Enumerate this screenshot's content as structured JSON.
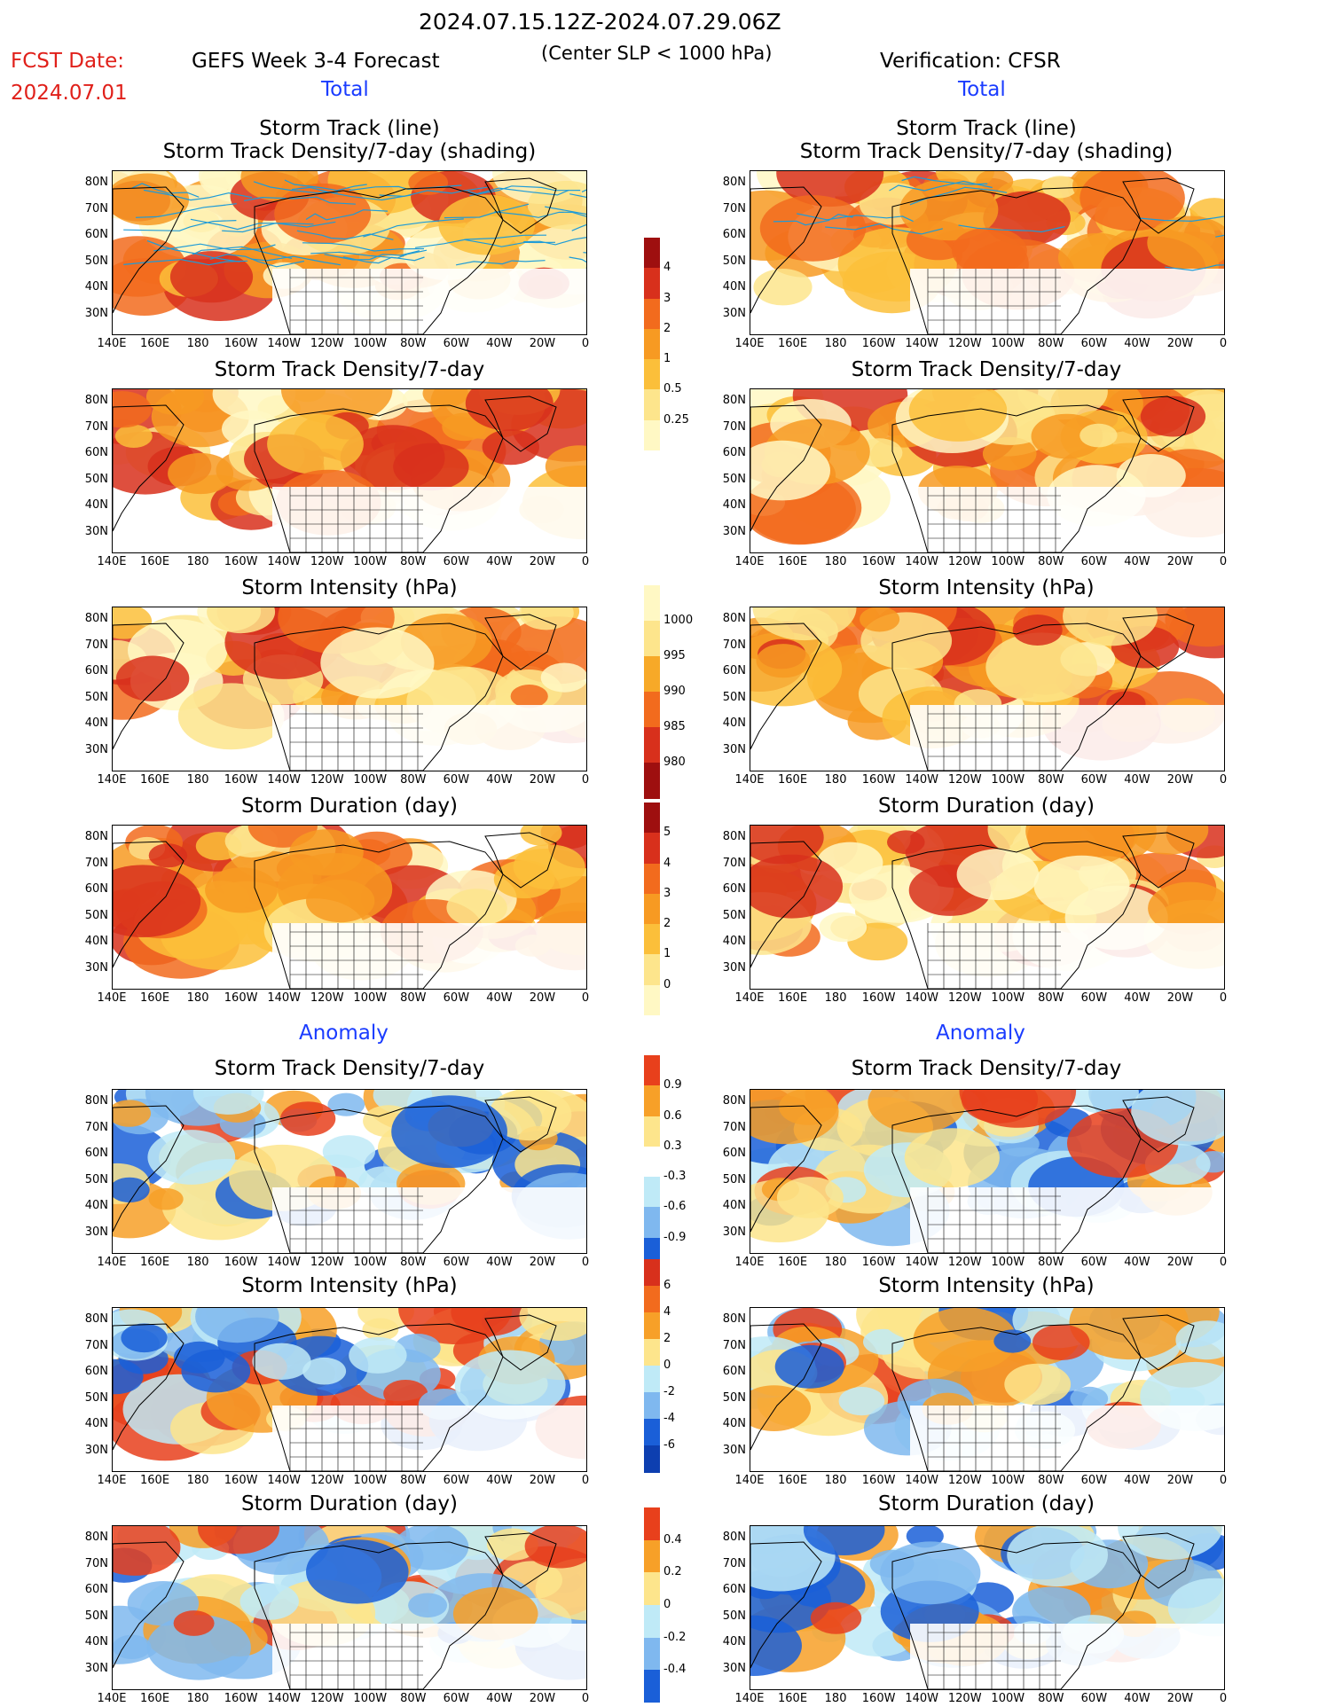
{
  "header": {
    "period": "2024.07.15.12Z-2024.07.29.06Z",
    "fcst_label": "FCST Date:",
    "fcst_date": "2024.07.01",
    "left_title": "GEFS Week 3-4 Forecast",
    "subtitle": "(Center SLP < 1000 hPa)",
    "right_title": "Verification: CFSR",
    "section_total": "Total",
    "section_anomaly": "Anomaly"
  },
  "panel_titles": {
    "track_line": "Storm Track (line)",
    "track_density_shading": "Storm Track Density/7-day (shading)",
    "track_density": "Storm Track Density/7-day",
    "intensity": "Storm Intensity (hPa)",
    "duration": "Storm Duration (day)"
  },
  "axes": {
    "lat_labels": [
      "80N",
      "70N",
      "60N",
      "50N",
      "40N",
      "30N"
    ],
    "lon_labels": [
      "140E",
      "160E",
      "180",
      "160W",
      "140W",
      "120W",
      "100W",
      "80W",
      "60W",
      "40W",
      "20W",
      "0"
    ]
  },
  "colorbars": {
    "density_total": {
      "labels": [
        "4",
        "3",
        "2",
        "1",
        "0.5",
        "0.25"
      ],
      "colors": [
        "#9e0f0f",
        "#d8301c",
        "#f26b1d",
        "#f79a22",
        "#fbbf3a",
        "#fde58c",
        "#fff8c4"
      ]
    },
    "intensity_total": {
      "labels": [
        "1000",
        "995",
        "990",
        "985",
        "980"
      ],
      "colors": [
        "#fff8c4",
        "#fde58c",
        "#f7a928",
        "#f26b1d",
        "#d8301c",
        "#9e0f0f"
      ]
    },
    "duration_total": {
      "labels": [
        "5",
        "4",
        "3",
        "2",
        "1",
        "0"
      ],
      "colors": [
        "#9e0f0f",
        "#d8301c",
        "#f26b1d",
        "#f79a22",
        "#fbbf3a",
        "#fde58c",
        "#fff8c4"
      ]
    },
    "density_anom": {
      "labels": [
        "0.9",
        "0.6",
        "0.3",
        "-0.3",
        "-0.6",
        "-0.9"
      ],
      "colors": [
        "#e8401c",
        "#f7a028",
        "#fde58c",
        "#ffffff",
        "#bfeaf7",
        "#7fb8ef",
        "#1a5fd8"
      ]
    },
    "intensity_anom": {
      "labels": [
        "6",
        "4",
        "2",
        "0",
        "-2",
        "-4",
        "-6"
      ],
      "colors": [
        "#d8301c",
        "#f26b1d",
        "#f7a028",
        "#fde58c",
        "#bfeaf7",
        "#7fb8ef",
        "#1a5fd8",
        "#0d3fb0"
      ]
    },
    "duration_anom": {
      "labels": [
        "0.4",
        "0.2",
        "0",
        "-0.2",
        "-0.4"
      ],
      "colors": [
        "#e8401c",
        "#f7a028",
        "#fde58c",
        "#bfeaf7",
        "#7fb8ef",
        "#1a5fd8"
      ]
    }
  }
}
